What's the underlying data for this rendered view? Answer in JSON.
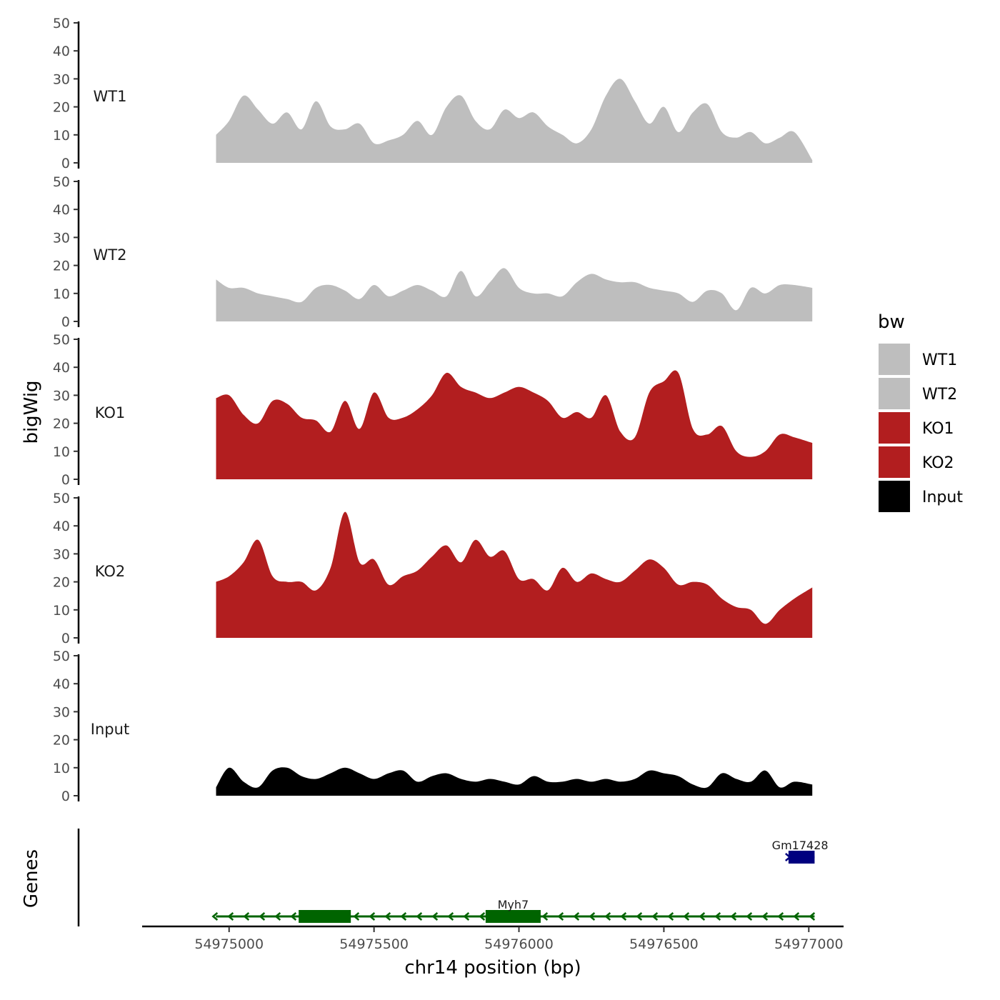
{
  "chart_data": {
    "type": "area",
    "ylabel": "bigWig",
    "xlabel": "chr14 position (bp)",
    "ylim": [
      0,
      50
    ],
    "yticks": [
      0,
      10,
      20,
      30,
      40,
      50
    ],
    "xlim": [
      54974700,
      54977120
    ],
    "xticks": [
      54975000,
      54975500,
      54976000,
      54976500,
      54977000
    ],
    "xtick_labels": [
      "54975000",
      "54975500",
      "54976000",
      "54976500",
      "54977000"
    ],
    "legend": {
      "title": "bw",
      "position": "right"
    },
    "colors": {
      "WT1": "#bebebe",
      "WT2": "#bebebe",
      "KO1": "#b21e1f",
      "KO2": "#b21e1f",
      "Input": "#000000"
    },
    "x": [
      54974955,
      54975000,
      54975050,
      54975100,
      54975150,
      54975200,
      54975250,
      54975300,
      54975350,
      54975400,
      54975450,
      54975500,
      54975550,
      54975600,
      54975650,
      54975700,
      54975750,
      54975800,
      54975850,
      54975900,
      54975950,
      54976000,
      54976050,
      54976100,
      54976150,
      54976200,
      54976250,
      54976300,
      54976350,
      54976400,
      54976450,
      54976500,
      54976550,
      54976600,
      54976650,
      54976700,
      54976750,
      54976800,
      54976850,
      54976900,
      54976950,
      54977012
    ],
    "series": [
      {
        "name": "WT1",
        "values": [
          10,
          15,
          24,
          19,
          14,
          18,
          12,
          22,
          13,
          12,
          14,
          7,
          8,
          10,
          15,
          10,
          20,
          24,
          15,
          12,
          19,
          16,
          18,
          13,
          10,
          7,
          12,
          24,
          30,
          22,
          14,
          20,
          11,
          18,
          21,
          11,
          9,
          11,
          7,
          9,
          11,
          1
        ]
      },
      {
        "name": "WT2",
        "values": [
          15,
          12,
          12,
          10,
          9,
          8,
          7,
          12,
          13,
          11,
          8,
          13,
          9,
          11,
          13,
          11,
          9,
          18,
          9,
          14,
          19,
          12,
          10,
          10,
          9,
          14,
          17,
          15,
          14,
          14,
          12,
          11,
          10,
          7,
          11,
          10,
          4,
          12,
          10,
          13,
          13,
          12
        ]
      },
      {
        "name": "KO1",
        "values": [
          29,
          30,
          23,
          20,
          28,
          27,
          22,
          21,
          17,
          28,
          18,
          31,
          22,
          22,
          25,
          30,
          38,
          33,
          31,
          29,
          31,
          33,
          31,
          28,
          22,
          24,
          22,
          30,
          17,
          15,
          31,
          35,
          38,
          18,
          16,
          19,
          10,
          8,
          10,
          16,
          15,
          13
        ]
      },
      {
        "name": "KO2",
        "values": [
          20,
          22,
          27,
          35,
          22,
          20,
          20,
          17,
          25,
          45,
          27,
          28,
          19,
          22,
          24,
          29,
          33,
          27,
          35,
          29,
          31,
          21,
          21,
          17,
          25,
          20,
          23,
          21,
          20,
          24,
          28,
          25,
          19,
          20,
          19,
          14,
          11,
          10,
          5,
          10,
          14,
          18
        ]
      },
      {
        "name": "Input",
        "values": [
          3,
          10,
          5,
          3,
          9,
          10,
          7,
          6,
          8,
          10,
          8,
          6,
          8,
          9,
          5,
          7,
          8,
          6,
          5,
          6,
          5,
          4,
          7,
          5,
          5,
          6,
          5,
          6,
          5,
          6,
          9,
          8,
          7,
          4,
          3,
          8,
          6,
          5,
          9,
          3,
          5,
          4
        ]
      }
    ],
    "genes": {
      "label": "Genes",
      "items": [
        {
          "name": "Myh7",
          "strand": "-",
          "start": 54974930,
          "end": 54977020,
          "color": "#006400",
          "exons": [
            [
              54975240,
              54975420
            ],
            [
              54975885,
              54976075
            ]
          ]
        },
        {
          "name": "Gm17428",
          "strand": "+",
          "start": 54976920,
          "end": 54977020,
          "color": "#00007f",
          "exons": [
            [
              54976930,
              54977020
            ]
          ]
        }
      ]
    }
  }
}
